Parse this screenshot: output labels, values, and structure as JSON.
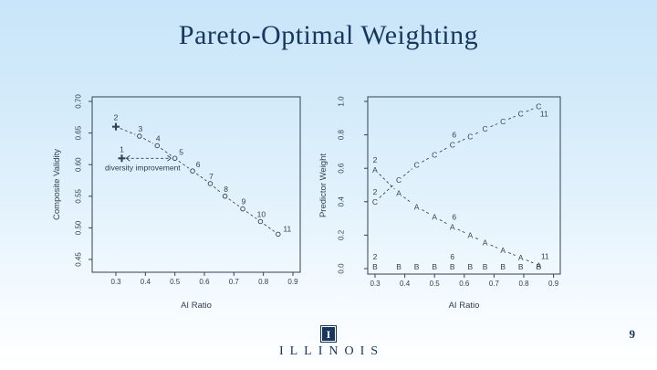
{
  "slide": {
    "title": "Pareto-Optimal Weighting",
    "page_number": "9",
    "colors": {
      "background_top": "#c9e5f9",
      "background_bottom": "#ffffff",
      "title_navy": "#17375e",
      "chart_ink": "#33414f",
      "logo_navy": "#17365d"
    }
  },
  "logo": {
    "wordmark": "ILLINOIS",
    "mark_letter": "I"
  },
  "chart_data": [
    {
      "type": "scatter",
      "name": "composite-validity-vs-ai-ratio",
      "xlabel": "AI Ratio",
      "ylabel": "Composite Validity",
      "xlim": [
        0.3,
        0.9
      ],
      "ylim": [
        0.45,
        0.7
      ],
      "x_ticks": [
        "0.3",
        "0.4",
        "0.5",
        "0.6",
        "0.7",
        "0.8",
        "0.9"
      ],
      "y_ticks": [
        "0.45",
        "0.50",
        "0.55",
        "0.60",
        "0.65",
        "0.70"
      ],
      "grid": false,
      "legend": "none",
      "points": [
        {
          "label": "1",
          "x": 0.32,
          "y": 0.61,
          "marker": "plus"
        },
        {
          "label": "2",
          "x": 0.3,
          "y": 0.66,
          "marker": "plus"
        },
        {
          "label": "3",
          "x": 0.38,
          "y": 0.645,
          "marker": "circle"
        },
        {
          "label": "4",
          "x": 0.44,
          "y": 0.63,
          "marker": "circle"
        },
        {
          "label": "5",
          "x": 0.5,
          "y": 0.61,
          "marker": "circle"
        },
        {
          "label": "6",
          "x": 0.56,
          "y": 0.59,
          "marker": "circle"
        },
        {
          "label": "7",
          "x": 0.62,
          "y": 0.57,
          "marker": "circle"
        },
        {
          "label": "8",
          "x": 0.67,
          "y": 0.55,
          "marker": "circle"
        },
        {
          "label": "9",
          "x": 0.73,
          "y": 0.53,
          "marker": "circle"
        },
        {
          "label": "10",
          "x": 0.79,
          "y": 0.51,
          "marker": "circle"
        },
        {
          "label": "11",
          "x": 0.85,
          "y": 0.49,
          "marker": "circle"
        }
      ],
      "line_through_labels": [
        "2",
        "3",
        "4",
        "5",
        "6",
        "7",
        "8",
        "9",
        "10",
        "11"
      ],
      "label_offsets": {
        "default": [
          1,
          -5
        ],
        "1": [
          0,
          -7
        ],
        "2": [
          0,
          -7
        ],
        "5": [
          7,
          -4
        ],
        "6": [
          6,
          -4
        ],
        "11": [
          10,
          -3
        ]
      },
      "annotation": {
        "text": "diversity improvement",
        "style": "double-headed-dashed-arrow",
        "arrow_y": 0.61,
        "arrow_x_from": 0.335,
        "arrow_x_to": 0.487
      }
    },
    {
      "type": "scatter",
      "name": "predictor-weight-vs-ai-ratio",
      "xlabel": "AI Ratio",
      "ylabel": "Predictor Weight",
      "xlim": [
        0.3,
        0.9
      ],
      "ylim": [
        0.0,
        1.0
      ],
      "x_ticks": [
        "0.3",
        "0.4",
        "0.5",
        "0.6",
        "0.7",
        "0.8",
        "0.9"
      ],
      "y_ticks": [
        "0.0",
        "0.2",
        "0.4",
        "0.6",
        "0.8",
        "1.0"
      ],
      "grid": false,
      "legend": "none",
      "x": [
        0.3,
        0.38,
        0.44,
        0.5,
        0.56,
        0.62,
        0.67,
        0.73,
        0.79,
        0.85
      ],
      "series": [
        {
          "name": "A",
          "marker_char": "A",
          "connect": true,
          "values": [
            0.59,
            0.45,
            0.37,
            0.31,
            0.25,
            0.2,
            0.155,
            0.11,
            0.065,
            0.02
          ],
          "point_labels": [
            {
              "i": 0,
              "t": "2",
              "dx": 0,
              "dy": -8
            },
            {
              "i": 4,
              "t": "6",
              "dx": 2,
              "dy": -8
            },
            {
              "i": 9,
              "t": "11",
              "dx": 7,
              "dy": -7
            }
          ]
        },
        {
          "name": "B",
          "marker_char": "B",
          "connect": false,
          "values": [
            0.01,
            0.01,
            0.01,
            0.01,
            0.01,
            0.01,
            0.01,
            0.01,
            0.01,
            0.01
          ],
          "point_labels": [
            {
              "i": 0,
              "t": "2",
              "dx": 0,
              "dy": -8
            },
            {
              "i": 4,
              "t": "6",
              "dx": 0,
              "dy": -8
            }
          ]
        },
        {
          "name": "C",
          "marker_char": "C",
          "connect": true,
          "values": [
            0.4,
            0.53,
            0.62,
            0.68,
            0.74,
            0.79,
            0.835,
            0.88,
            0.925,
            0.97
          ],
          "point_labels": [
            {
              "i": 0,
              "t": "2",
              "dx": 0,
              "dy": -8
            },
            {
              "i": 4,
              "t": "6",
              "dx": 2,
              "dy": -8
            },
            {
              "i": 9,
              "t": "11",
              "dx": 6,
              "dy": 11
            }
          ]
        }
      ]
    }
  ]
}
